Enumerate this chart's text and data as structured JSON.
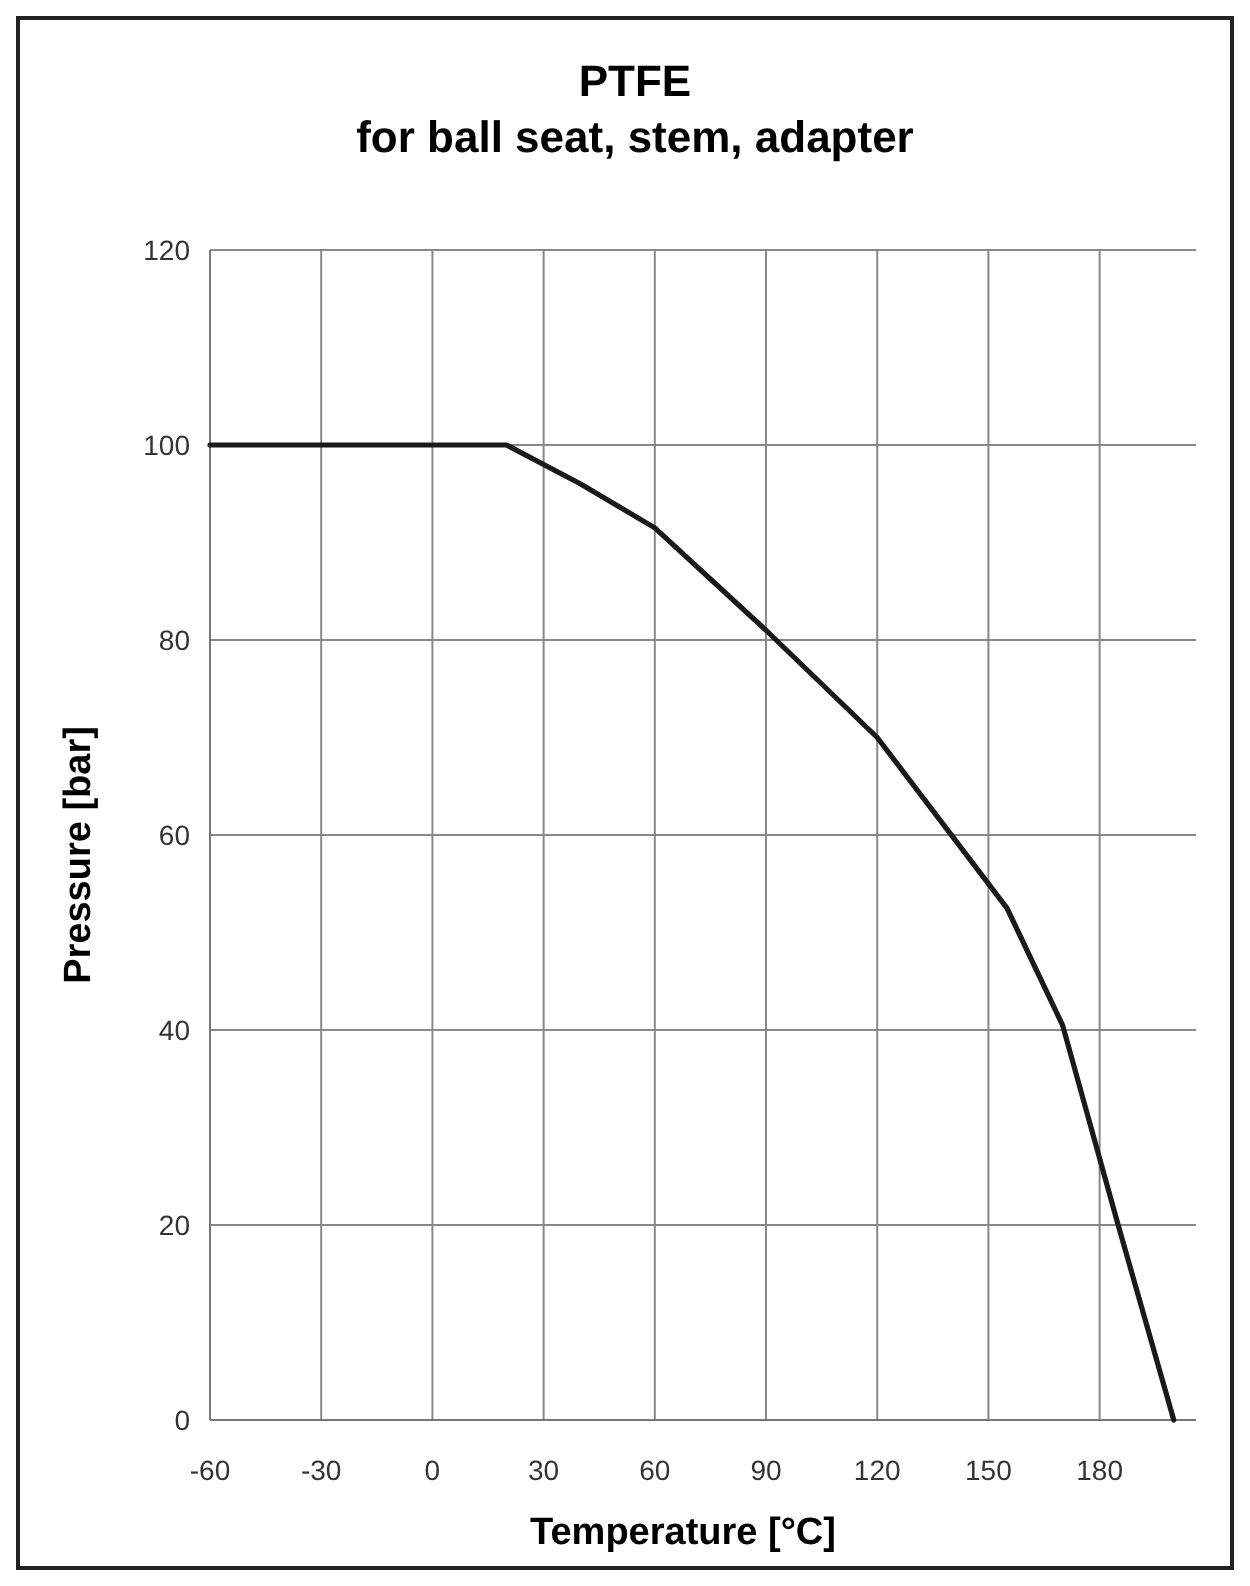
{
  "chart_data": {
    "type": "line",
    "title": "PTFE",
    "subtitle": "for ball seat, stem, adapter",
    "xlabel": "Temperature [°C]",
    "ylabel": "Pressure [bar]",
    "x": [
      -60,
      20,
      40,
      60,
      90,
      120,
      155,
      170,
      185,
      200
    ],
    "series": [
      {
        "color": "#1a1a1a",
        "values": [
          100,
          100,
          96,
          91.5,
          81,
          70,
          52.5,
          40.5,
          20,
          0
        ]
      }
    ],
    "xlim": [
      -60,
      206
    ],
    "xticks": [
      -60,
      -30,
      0,
      30,
      60,
      90,
      120,
      150,
      180
    ],
    "ylim": [
      0,
      120
    ],
    "yticks": [
      0,
      20,
      40,
      60,
      80,
      100,
      120
    ],
    "grid": true,
    "marker": "none",
    "line_style": "solid"
  }
}
